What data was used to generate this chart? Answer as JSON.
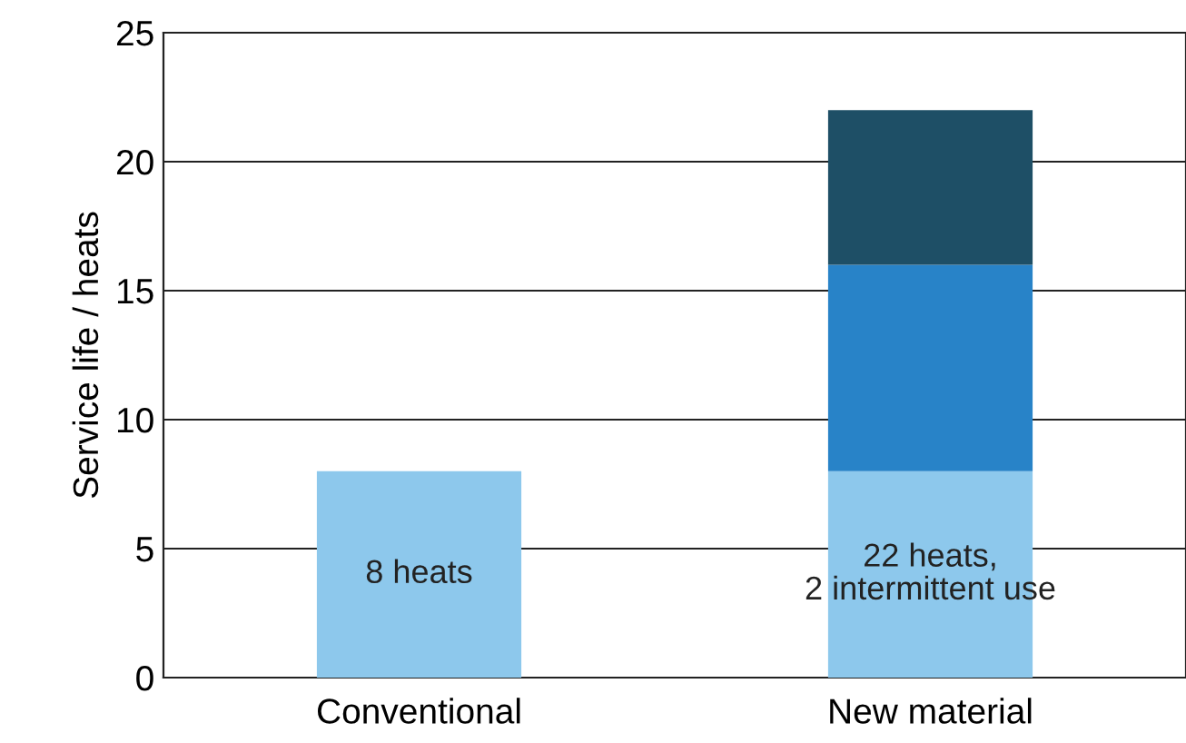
{
  "chart_data": {
    "type": "bar",
    "ylabel": "Service life / heats",
    "categories": [
      "Conventional",
      "New material"
    ],
    "stacked": true,
    "series": [
      {
        "color": "#8dc8ec",
        "values": [
          8,
          8
        ]
      },
      {
        "color": "#2883c8",
        "values": [
          null,
          8
        ]
      },
      {
        "color": "#1e4f66",
        "values": [
          null,
          6
        ]
      }
    ],
    "ylim": [
      0,
      25
    ],
    "yticks": [
      0,
      5,
      10,
      15,
      20,
      25
    ],
    "grid": "y",
    "annotations": [
      "8 heats",
      "22 heats,\n2 intermittent use"
    ]
  }
}
